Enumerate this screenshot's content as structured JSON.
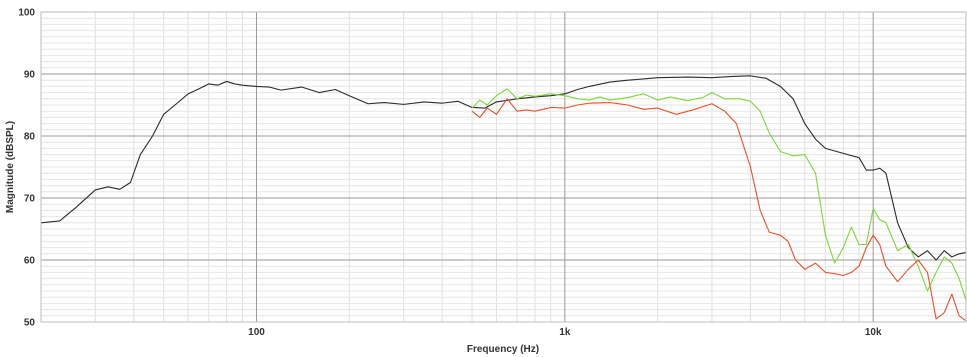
{
  "chart_data": {
    "type": "line",
    "title": "",
    "xlabel": "Frequency (Hz)",
    "ylabel": "Magnitude (dBSPL)",
    "x_scale": "log",
    "xlim": [
      20,
      20000
    ],
    "ylim": [
      50,
      100
    ],
    "grid": true,
    "x_tick_labels": [
      {
        "value": 100,
        "label": "100"
      },
      {
        "value": 1000,
        "label": "1k"
      },
      {
        "value": 10000,
        "label": "10k"
      }
    ],
    "y_tick_labels": [
      {
        "value": 50,
        "label": "50"
      },
      {
        "value": 60,
        "label": "60"
      },
      {
        "value": 70,
        "label": "70"
      },
      {
        "value": 80,
        "label": "80"
      },
      {
        "value": 90,
        "label": "90"
      },
      {
        "value": 100,
        "label": "100"
      }
    ],
    "series": [
      {
        "color": "#2b2b2b",
        "points": [
          [
            20,
            66.0
          ],
          [
            23,
            66.3
          ],
          [
            26,
            68.5
          ],
          [
            30,
            71.3
          ],
          [
            33,
            71.8
          ],
          [
            36,
            71.4
          ],
          [
            39,
            72.5
          ],
          [
            42,
            77.0
          ],
          [
            46,
            80.0
          ],
          [
            50,
            83.5
          ],
          [
            55,
            85.2
          ],
          [
            60,
            86.8
          ],
          [
            65,
            87.6
          ],
          [
            70,
            88.4
          ],
          [
            75,
            88.2
          ],
          [
            80,
            88.8
          ],
          [
            85,
            88.4
          ],
          [
            90,
            88.2
          ],
          [
            100,
            88.0
          ],
          [
            110,
            87.9
          ],
          [
            120,
            87.4
          ],
          [
            140,
            87.9
          ],
          [
            160,
            87.0
          ],
          [
            180,
            87.5
          ],
          [
            200,
            86.5
          ],
          [
            230,
            85.2
          ],
          [
            260,
            85.4
          ],
          [
            300,
            85.1
          ],
          [
            350,
            85.5
          ],
          [
            400,
            85.3
          ],
          [
            450,
            85.6
          ],
          [
            500,
            84.6
          ],
          [
            550,
            84.5
          ],
          [
            600,
            85.5
          ],
          [
            700,
            86.0
          ],
          [
            800,
            86.3
          ],
          [
            900,
            86.5
          ],
          [
            1000,
            86.8
          ],
          [
            1100,
            87.5
          ],
          [
            1200,
            88.0
          ],
          [
            1400,
            88.7
          ],
          [
            1600,
            89.0
          ],
          [
            1800,
            89.2
          ],
          [
            2000,
            89.4
          ],
          [
            2500,
            89.5
          ],
          [
            3000,
            89.4
          ],
          [
            3500,
            89.6
          ],
          [
            4000,
            89.7
          ],
          [
            4500,
            89.3
          ],
          [
            5000,
            88.0
          ],
          [
            5500,
            86.0
          ],
          [
            6000,
            82.0
          ],
          [
            6500,
            79.5
          ],
          [
            7000,
            78.0
          ],
          [
            8000,
            77.2
          ],
          [
            9000,
            76.5
          ],
          [
            9500,
            74.5
          ],
          [
            10000,
            74.5
          ],
          [
            10500,
            74.8
          ],
          [
            11000,
            74.0
          ],
          [
            12000,
            66.0
          ],
          [
            13000,
            62.0
          ],
          [
            14000,
            60.5
          ],
          [
            15000,
            61.5
          ],
          [
            16000,
            60.0
          ],
          [
            17000,
            61.5
          ],
          [
            18000,
            60.5
          ],
          [
            19000,
            61.0
          ],
          [
            20000,
            61.2
          ]
        ]
      },
      {
        "color": "#7ed63a",
        "points": [
          [
            500,
            84.5
          ],
          [
            530,
            85.8
          ],
          [
            560,
            85.0
          ],
          [
            600,
            86.5
          ],
          [
            650,
            87.6
          ],
          [
            700,
            86.0
          ],
          [
            750,
            86.6
          ],
          [
            800,
            86.4
          ],
          [
            900,
            86.8
          ],
          [
            1000,
            86.5
          ],
          [
            1100,
            86.0
          ],
          [
            1200,
            85.8
          ],
          [
            1300,
            86.3
          ],
          [
            1400,
            85.8
          ],
          [
            1600,
            86.2
          ],
          [
            1800,
            86.8
          ],
          [
            2000,
            85.8
          ],
          [
            2200,
            86.3
          ],
          [
            2500,
            85.7
          ],
          [
            2800,
            86.2
          ],
          [
            3000,
            87.0
          ],
          [
            3300,
            86.0
          ],
          [
            3700,
            86.0
          ],
          [
            4000,
            85.6
          ],
          [
            4300,
            84.0
          ],
          [
            4600,
            80.5
          ],
          [
            5000,
            77.5
          ],
          [
            5500,
            76.8
          ],
          [
            6000,
            77.0
          ],
          [
            6500,
            74.0
          ],
          [
            7000,
            64.0
          ],
          [
            7500,
            59.5
          ],
          [
            8000,
            62.0
          ],
          [
            8500,
            65.3
          ],
          [
            9000,
            62.5
          ],
          [
            9500,
            62.5
          ],
          [
            10000,
            68.3
          ],
          [
            10500,
            66.5
          ],
          [
            11000,
            66.0
          ],
          [
            12000,
            61.5
          ],
          [
            13000,
            62.5
          ],
          [
            14000,
            59.0
          ],
          [
            15000,
            55.0
          ],
          [
            16000,
            58.0
          ],
          [
            17000,
            60.5
          ],
          [
            18000,
            59.5
          ],
          [
            19000,
            57.0
          ],
          [
            20000,
            53.5
          ]
        ]
      },
      {
        "color": "#e8512b",
        "points": [
          [
            500,
            84.0
          ],
          [
            530,
            83.0
          ],
          [
            560,
            84.5
          ],
          [
            600,
            83.5
          ],
          [
            650,
            86.0
          ],
          [
            700,
            84.0
          ],
          [
            750,
            84.2
          ],
          [
            800,
            84.0
          ],
          [
            900,
            84.6
          ],
          [
            1000,
            84.5
          ],
          [
            1100,
            85.0
          ],
          [
            1200,
            85.3
          ],
          [
            1400,
            85.4
          ],
          [
            1600,
            85.0
          ],
          [
            1800,
            84.3
          ],
          [
            2000,
            84.5
          ],
          [
            2300,
            83.5
          ],
          [
            2600,
            84.2
          ],
          [
            3000,
            85.2
          ],
          [
            3300,
            84.0
          ],
          [
            3600,
            82.0
          ],
          [
            4000,
            75.0
          ],
          [
            4300,
            68.0
          ],
          [
            4600,
            64.5
          ],
          [
            5000,
            64.0
          ],
          [
            5300,
            63.0
          ],
          [
            5600,
            60.0
          ],
          [
            6000,
            58.5
          ],
          [
            6500,
            59.5
          ],
          [
            7000,
            58.0
          ],
          [
            7500,
            57.8
          ],
          [
            8000,
            57.5
          ],
          [
            8500,
            58.0
          ],
          [
            9000,
            59.0
          ],
          [
            9500,
            62.0
          ],
          [
            10000,
            64.0
          ],
          [
            10500,
            62.5
          ],
          [
            11000,
            59.0
          ],
          [
            12000,
            56.5
          ],
          [
            13000,
            58.5
          ],
          [
            14000,
            60.0
          ],
          [
            15000,
            58.0
          ],
          [
            16000,
            50.5
          ],
          [
            17000,
            51.5
          ],
          [
            18000,
            54.5
          ],
          [
            19000,
            51.0
          ],
          [
            20000,
            50.2
          ]
        ]
      }
    ]
  }
}
